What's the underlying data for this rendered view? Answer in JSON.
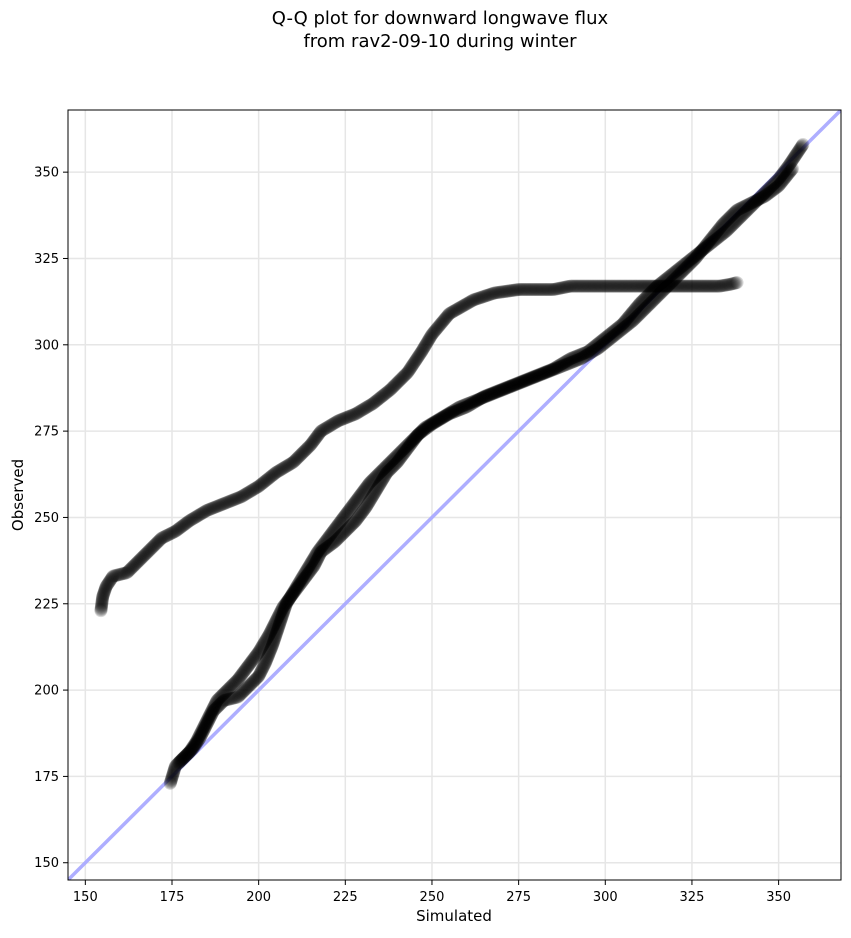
{
  "chart_data": {
    "type": "scatter",
    "title_line1": "Q-Q plot for downward longwave flux",
    "title_line2": "from rav2-09-10 during winter",
    "xlabel": "Simulated",
    "ylabel": "Observed",
    "xlim": [
      145,
      368
    ],
    "ylim": [
      145,
      368
    ],
    "xticks": [
      150,
      175,
      200,
      225,
      250,
      275,
      300,
      325,
      350
    ],
    "yticks": [
      150,
      175,
      200,
      225,
      250,
      275,
      300,
      325,
      350
    ],
    "grid": true,
    "reference_line": {
      "label": "1:1 line",
      "color": "#aaaaff"
    },
    "marker_color": "#000000",
    "series": [
      {
        "curve": [
          [
            154.5,
            223
          ],
          [
            155,
            227
          ],
          [
            156,
            230
          ],
          [
            158,
            233
          ],
          [
            162,
            234
          ],
          [
            165,
            237
          ],
          [
            168,
            240
          ],
          [
            172,
            244
          ],
          [
            176,
            246
          ],
          [
            180,
            249
          ],
          [
            185,
            252
          ],
          [
            190,
            254
          ],
          [
            195,
            256
          ],
          [
            200,
            259
          ],
          [
            205,
            263
          ],
          [
            210,
            266
          ],
          [
            215,
            271
          ],
          [
            218,
            275
          ],
          [
            223,
            278
          ],
          [
            228,
            280
          ],
          [
            233,
            283
          ],
          [
            238,
            287
          ],
          [
            243,
            292
          ],
          [
            247,
            298
          ],
          [
            250,
            303
          ],
          [
            255,
            309
          ],
          [
            262,
            313
          ],
          [
            268,
            315
          ],
          [
            275,
            316
          ],
          [
            285,
            316
          ],
          [
            290,
            317
          ],
          [
            300,
            317
          ],
          [
            310,
            317
          ],
          [
            318,
            317
          ],
          [
            325,
            317
          ],
          [
            330,
            317
          ],
          [
            333,
            317
          ],
          [
            336,
            317.5
          ],
          [
            338,
            318
          ]
        ]
      },
      {
        "curve": [
          [
            174.5,
            173
          ],
          [
            176,
            178
          ],
          [
            178,
            180
          ],
          [
            180,
            182
          ],
          [
            182,
            185
          ],
          [
            184,
            189
          ],
          [
            186,
            193
          ],
          [
            188,
            197
          ],
          [
            191,
            200
          ],
          [
            194,
            203
          ],
          [
            197,
            207
          ],
          [
            200,
            211
          ],
          [
            203,
            216
          ],
          [
            205,
            220
          ],
          [
            207,
            224
          ],
          [
            210,
            228
          ],
          [
            213,
            232
          ],
          [
            216,
            236
          ],
          [
            218,
            240
          ],
          [
            222,
            243
          ],
          [
            225,
            246
          ],
          [
            228,
            249
          ],
          [
            231,
            253
          ],
          [
            234,
            258
          ],
          [
            237,
            263
          ],
          [
            240,
            266
          ],
          [
            243,
            270
          ],
          [
            246,
            274
          ],
          [
            250,
            277
          ],
          [
            255,
            280
          ],
          [
            260,
            282
          ],
          [
            265,
            285
          ],
          [
            270,
            287
          ],
          [
            275,
            289
          ],
          [
            280,
            291
          ],
          [
            285,
            293
          ],
          [
            290,
            296
          ],
          [
            295,
            298
          ],
          [
            300,
            302
          ],
          [
            305,
            306
          ],
          [
            310,
            312
          ],
          [
            315,
            317
          ],
          [
            320,
            321
          ],
          [
            325,
            325
          ],
          [
            330,
            329
          ],
          [
            335,
            333
          ],
          [
            340,
            338
          ],
          [
            345,
            343
          ],
          [
            350,
            348
          ],
          [
            353,
            352
          ],
          [
            355,
            355
          ],
          [
            357,
            358
          ]
        ]
      },
      {
        "curve": [
          [
            177,
            179
          ],
          [
            179,
            181
          ],
          [
            181,
            183
          ],
          [
            183,
            186
          ],
          [
            185,
            190
          ],
          [
            187,
            194
          ],
          [
            190,
            197
          ],
          [
            194,
            198
          ],
          [
            197,
            201
          ],
          [
            200,
            204
          ],
          [
            202,
            208
          ],
          [
            204,
            213
          ],
          [
            206,
            219
          ],
          [
            208,
            225
          ],
          [
            211,
            230
          ],
          [
            214,
            235
          ],
          [
            217,
            240
          ],
          [
            220,
            244
          ],
          [
            223,
            248
          ],
          [
            226,
            252
          ],
          [
            229,
            256
          ],
          [
            232,
            260
          ],
          [
            236,
            264
          ],
          [
            240,
            268
          ],
          [
            244,
            272
          ],
          [
            248,
            276
          ],
          [
            253,
            279
          ],
          [
            258,
            282
          ],
          [
            263,
            284
          ],
          [
            268,
            286
          ],
          [
            273,
            288
          ],
          [
            278,
            290
          ],
          [
            283,
            292
          ],
          [
            288,
            294
          ],
          [
            293,
            296
          ],
          [
            298,
            299
          ],
          [
            303,
            303
          ],
          [
            308,
            307
          ],
          [
            313,
            312
          ],
          [
            318,
            317
          ],
          [
            322,
            321
          ],
          [
            326,
            325
          ],
          [
            330,
            330
          ],
          [
            334,
            335
          ],
          [
            338,
            339
          ],
          [
            342,
            341
          ],
          [
            346,
            343
          ],
          [
            350,
            346
          ],
          [
            354,
            351
          ]
        ]
      }
    ]
  }
}
